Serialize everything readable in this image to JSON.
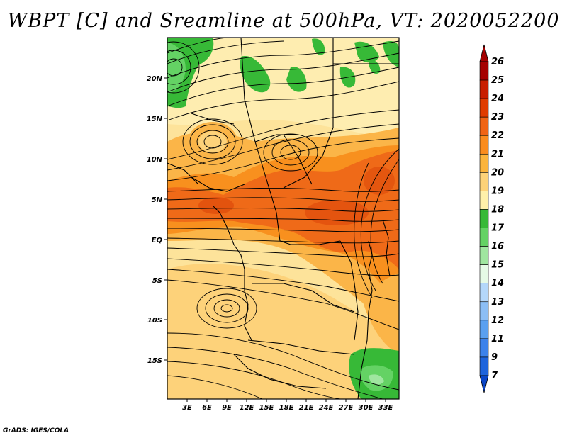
{
  "title": "WBPT [C] and Sreamline at 500hPa, VT: 2020052200",
  "credit": "GrADS: IGES/COLA",
  "map": {
    "lat_labels": [
      "20N",
      "15N",
      "10N",
      "5N",
      "EQ",
      "5S",
      "10S",
      "15S"
    ],
    "lon_labels": [
      "3E",
      "6E",
      "9E",
      "12E",
      "15E",
      "18E",
      "21E",
      "24E",
      "27E",
      "30E",
      "33E"
    ],
    "field": "Wet-bulb potential temperature",
    "overlay": "Streamlines"
  },
  "colorbar": {
    "levels": [
      "26",
      "25",
      "24",
      "23",
      "22",
      "21",
      "20",
      "19",
      "18",
      "17",
      "16",
      "15",
      "14",
      "13",
      "12",
      "11",
      "9",
      "7"
    ],
    "colors": [
      "#a50000",
      "#c81e00",
      "#e03c00",
      "#f06414",
      "#fa8c1e",
      "#fbb43c",
      "#fdd278",
      "#fef0aa",
      "#37b937",
      "#64d264",
      "#a0e6a0",
      "#e6fae6",
      "#b4d7fa",
      "#8cbef5",
      "#5aa0f0",
      "#3c82eb",
      "#1e64dc",
      "#0a46c8"
    ]
  }
}
